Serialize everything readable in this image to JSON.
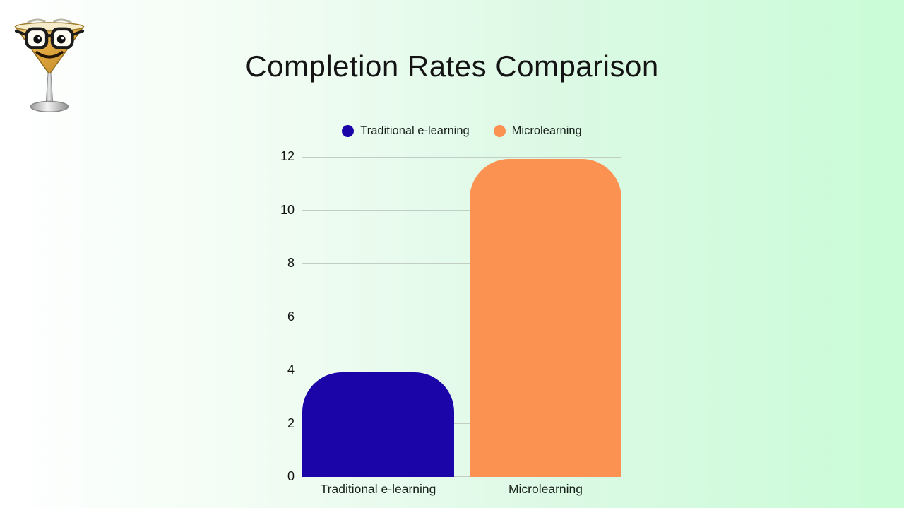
{
  "title": "Completion Rates Comparison",
  "logo": {
    "name": "martini-glass-mascot"
  },
  "colors": {
    "background_left": "#ffffff",
    "background_right": "#c9fcd7",
    "gridline": "#c2cdc4",
    "text": "#141414"
  },
  "legend": [
    {
      "label": "Traditional e-learning",
      "color": "#1b05a8"
    },
    {
      "label": "Microlearning",
      "color": "#fc9251"
    }
  ],
  "chart_data": {
    "type": "bar",
    "title": "Completion Rates Comparison",
    "categories": [
      "Traditional e-learning",
      "Microlearning"
    ],
    "values": [
      4,
      12
    ],
    "series_colors": [
      "#1b05a8",
      "#fc9251"
    ],
    "xlabel": "",
    "ylabel": "",
    "ylim": [
      0,
      12
    ],
    "yticks": [
      0,
      2,
      4,
      6,
      8,
      10,
      12
    ],
    "grid": true,
    "legend_position": "top"
  }
}
